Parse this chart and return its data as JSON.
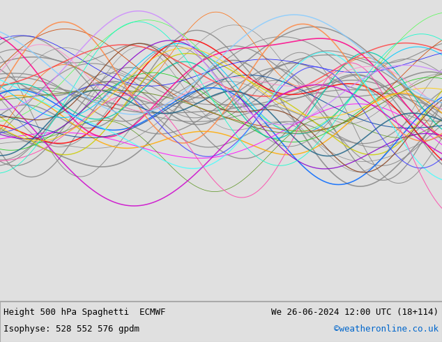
{
  "title_left": "Height 500 hPa Spaghetti  ECMWF",
  "title_right": "We 26-06-2024 12:00 UTC (18+114)",
  "subtitle_left": "Isophyse: 528 552 576 gpdm",
  "subtitle_right": "©weatheronline.co.uk",
  "subtitle_right_color": "#0066cc",
  "ocean_color": "#e8e8e8",
  "land_color": "#b8f0b8",
  "border_color": "#888888",
  "text_color": "#000000",
  "bottom_bar_color": "#e0e0e0",
  "fig_width": 6.34,
  "fig_height": 4.9,
  "dpi": 100,
  "map_extent": [
    70,
    180,
    0,
    65
  ],
  "contour_colors": [
    "#888888",
    "#888888",
    "#888888",
    "#888888",
    "#888888",
    "#888888",
    "#888888",
    "#888888",
    "#888888",
    "#888888",
    "#888888",
    "#888888",
    "#888888",
    "#888888",
    "#888888",
    "#888888",
    "#888888",
    "#888888",
    "#888888",
    "#888888",
    "#ff0000",
    "#ff6600",
    "#ffaa00",
    "#cccc00",
    "#00cc00",
    "#00ccaa",
    "#00ccff",
    "#0066ff",
    "#0000ff",
    "#8800cc",
    "#ff00ff",
    "#ff0088",
    "#cc4400",
    "#004499",
    "#448800",
    "#ff4444",
    "#ff8844",
    "#44ff44",
    "#44ffff",
    "#4444ff",
    "#cc00cc",
    "#ff44aa",
    "#884422",
    "#226688",
    "#668822",
    "#ffcc00",
    "#00ffcc",
    "#cc88ff",
    "#ff88cc",
    "#88ccff"
  ],
  "spaghetti_colors_named": [
    "gray",
    "magenta",
    "cyan",
    "orange",
    "yellow",
    "green",
    "blue",
    "red",
    "purple",
    "darkblue",
    "darkorange",
    "lime",
    "pink",
    "teal",
    "olive"
  ]
}
